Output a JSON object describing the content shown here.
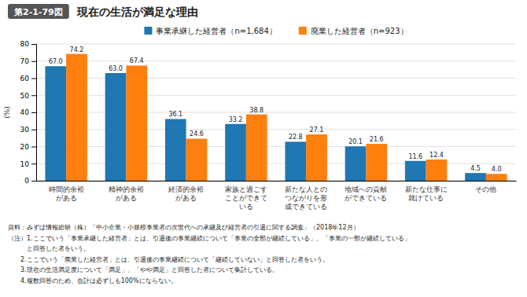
{
  "chart_data": {
    "type": "bar",
    "title": "現在の生活が満足な理由",
    "subtitle": "第2-1-79図",
    "ylabel": "(%)",
    "categories": [
      "時間的余裕\nがある",
      "精神的余裕\nがある",
      "経済的余裕\nがある",
      "家族と過ごす\nことができて\nいる",
      "新たな人との\nつながりを形\n成できている",
      "地域への貢献\nができている",
      "新たな仕事に\n就けている",
      "その他"
    ],
    "series": [
      {
        "name": "事業承継した経営者（n=1,684）",
        "values": [
          67.0,
          63.0,
          36.1,
          33.2,
          22.8,
          20.1,
          11.6,
          4.5
        ],
        "value_labels": [
          "67.0",
          "63.0",
          "36.1",
          "33.2",
          "22.8",
          "20.1",
          "11.6",
          "4.5"
        ]
      },
      {
        "name": "廃業した経営者（n=923）",
        "values": [
          74.2,
          67.4,
          24.6,
          38.8,
          27.1,
          21.6,
          12.4,
          4.0
        ],
        "value_labels": [
          "74.2",
          "67.4",
          "24.6",
          "38.8",
          "27.1",
          "21.6",
          "12.4",
          "4.0"
        ]
      }
    ],
    "ylim": [
      0,
      80
    ],
    "yticks": [
      0,
      10,
      20,
      30,
      40,
      50,
      60,
      70,
      80
    ],
    "grid": true,
    "legend": "top",
    "data_labels": true,
    "annotations": [
      "資料：みずほ情報総研（株）「中小企業・小規模事業者の次世代への承継及び経営者の引退に関する調査」（2018年12月）",
      "（注）1.ここでいう「事業承継した経営者」とは、引退後の事業継続について「事業の全部が継続している」、「事業の一部が継続している」",
      "　　　と回答した者をいう。",
      "　　2.ここでいう「廃業した経営者」とは、引退後の事業継続について「継続していない」と回答した者をいう。",
      "　　3.現在の生活満足度について「満足」、「やや満足」と回答した者について集計している。",
      "　　4.複数回答のため、合計は必ずしも100%にならない。"
    ]
  }
}
